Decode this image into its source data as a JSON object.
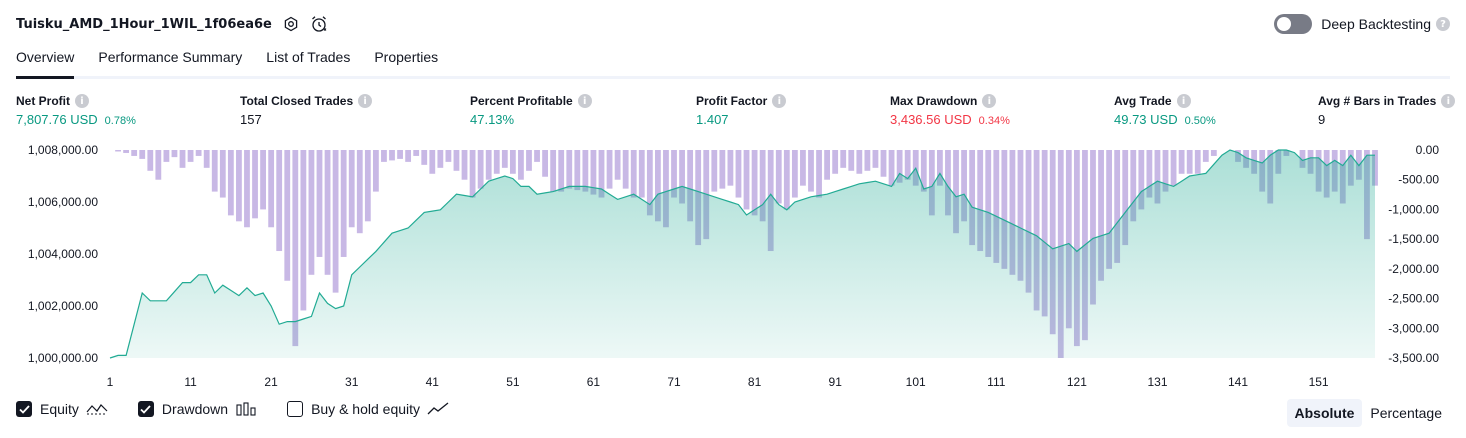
{
  "header": {
    "strategy_name": "Tuisku_AMD_1Hour_1WIL_1f06ea6e",
    "deep_backtesting_label": "Deep Backtesting",
    "deep_backtesting_enabled": false
  },
  "tabs": [
    {
      "label": "Overview",
      "active": true
    },
    {
      "label": "Performance Summary",
      "active": false
    },
    {
      "label": "List of Trades",
      "active": false
    },
    {
      "label": "Properties",
      "active": false
    }
  ],
  "metrics": {
    "net_profit": {
      "label": "Net Profit",
      "value": "7,807.76 USD",
      "pct": "0.78%"
    },
    "total_closed_trades": {
      "label": "Total Closed Trades",
      "value": "157"
    },
    "percent_profitable": {
      "label": "Percent Profitable",
      "value": "47.13%"
    },
    "profit_factor": {
      "label": "Profit Factor",
      "value": "1.407"
    },
    "max_drawdown": {
      "label": "Max Drawdown",
      "value": "3,436.56 USD",
      "pct": "0.34%"
    },
    "avg_trade": {
      "label": "Avg Trade",
      "value": "49.73 USD",
      "pct": "0.50%"
    },
    "avg_bars": {
      "label": "Avg # Bars in Trades",
      "value": "9"
    }
  },
  "colors": {
    "positive": "#089981",
    "negative": "#f23645",
    "equity_line": "#22ab94",
    "drawdown_bar": "#b39ddb"
  },
  "legend": {
    "equity_label": "Equity",
    "drawdown_label": "Drawdown",
    "buy_hold_label": "Buy & hold equity",
    "equity_checked": true,
    "drawdown_checked": true,
    "buy_hold_checked": false
  },
  "modes": [
    {
      "label": "Absolute",
      "active": true
    },
    {
      "label": "Percentage",
      "active": false
    }
  ],
  "chart_data": {
    "type": "area",
    "left_ticks": [
      "1,008,000.00",
      "1,006,000.00",
      "1,004,000.00",
      "1,002,000.00",
      "1,000,000.00"
    ],
    "left_tick_values": [
      1008000,
      1006000,
      1004000,
      1002000,
      1000000
    ],
    "right_ticks": [
      "0.00",
      "-500.00",
      "-1,000.00",
      "-1,500.00",
      "-2,000.00",
      "-2,500.00",
      "-3,000.00",
      "-3,500.00"
    ],
    "right_tick_values": [
      0,
      -500,
      -1000,
      -1500,
      -2000,
      -2500,
      -3000,
      -3500
    ],
    "x_ticks": [
      "1",
      "11",
      "21",
      "31",
      "41",
      "51",
      "61",
      "71",
      "81",
      "91",
      "101",
      "111",
      "121",
      "131",
      "141",
      "151"
    ],
    "x_tick_values": [
      1,
      11,
      21,
      31,
      41,
      51,
      61,
      71,
      81,
      91,
      101,
      111,
      121,
      131,
      141,
      151
    ],
    "equity_ylim": [
      1000000,
      1008000
    ],
    "drawdown_ylim": [
      -3500,
      0
    ],
    "xlim": [
      1,
      158
    ],
    "equity_anchors": [
      [
        1,
        1000000
      ],
      [
        2,
        1000100
      ],
      [
        3,
        1000100
      ],
      [
        4,
        1001300
      ],
      [
        5,
        1002500
      ],
      [
        6,
        1002200
      ],
      [
        8,
        1002200
      ],
      [
        10,
        1002900
      ],
      [
        11,
        1002900
      ],
      [
        12,
        1003200
      ],
      [
        13,
        1003200
      ],
      [
        14,
        1002500
      ],
      [
        15,
        1002800
      ],
      [
        16,
        1002600
      ],
      [
        17,
        1002400
      ],
      [
        18,
        1002700
      ],
      [
        19,
        1002400
      ],
      [
        20,
        1002500
      ],
      [
        21,
        1002000
      ],
      [
        22,
        1001300
      ],
      [
        23,
        1001400
      ],
      [
        24,
        1001400
      ],
      [
        25,
        1001500
      ],
      [
        26,
        1001600
      ],
      [
        27,
        1002500
      ],
      [
        28,
        1002100
      ],
      [
        29,
        1001900
      ],
      [
        30,
        1002000
      ],
      [
        31,
        1003200
      ],
      [
        34,
        1004100
      ],
      [
        36,
        1004800
      ],
      [
        38,
        1005000
      ],
      [
        40,
        1005600
      ],
      [
        42,
        1005700
      ],
      [
        44,
        1006300
      ],
      [
        46,
        1006200
      ],
      [
        48,
        1006800
      ],
      [
        50,
        1007000
      ],
      [
        51,
        1006900
      ],
      [
        52,
        1006600
      ],
      [
        53,
        1006600
      ],
      [
        54,
        1006300
      ],
      [
        56,
        1006400
      ],
      [
        58,
        1006600
      ],
      [
        60,
        1006600
      ],
      [
        62,
        1006500
      ],
      [
        64,
        1006100
      ],
      [
        65,
        1006200
      ],
      [
        66,
        1006300
      ],
      [
        67,
        1006100
      ],
      [
        68,
        1005900
      ],
      [
        69,
        1006300
      ],
      [
        70,
        1006400
      ],
      [
        72,
        1006600
      ],
      [
        74,
        1006400
      ],
      [
        76,
        1006200
      ],
      [
        78,
        1006000
      ],
      [
        79,
        1005900
      ],
      [
        80,
        1005500
      ],
      [
        81,
        1005700
      ],
      [
        82,
        1005900
      ],
      [
        83,
        1006300
      ],
      [
        84,
        1005900
      ],
      [
        85,
        1005700
      ],
      [
        86,
        1006000
      ],
      [
        88,
        1006200
      ],
      [
        90,
        1006300
      ],
      [
        92,
        1006500
      ],
      [
        94,
        1006700
      ],
      [
        96,
        1006800
      ],
      [
        98,
        1006600
      ],
      [
        99,
        1007100
      ],
      [
        100,
        1006900
      ],
      [
        101,
        1007300
      ],
      [
        102,
        1006500
      ],
      [
        103,
        1006600
      ],
      [
        104,
        1007100
      ],
      [
        105,
        1006600
      ],
      [
        106,
        1006200
      ],
      [
        107,
        1006300
      ],
      [
        108,
        1005800
      ],
      [
        110,
        1005600
      ],
      [
        112,
        1005300
      ],
      [
        114,
        1005000
      ],
      [
        116,
        1004700
      ],
      [
        118,
        1004200
      ],
      [
        120,
        1004400
      ],
      [
        121,
        1004100
      ],
      [
        123,
        1004600
      ],
      [
        125,
        1004800
      ],
      [
        127,
        1005600
      ],
      [
        129,
        1006400
      ],
      [
        131,
        1006800
      ],
      [
        133,
        1006600
      ],
      [
        135,
        1007000
      ],
      [
        137,
        1007100
      ],
      [
        139,
        1007800
      ],
      [
        140,
        1008000
      ],
      [
        141,
        1007900
      ],
      [
        142,
        1007700
      ],
      [
        143,
        1007600
      ],
      [
        144,
        1007500
      ],
      [
        145,
        1007800
      ],
      [
        146,
        1008000
      ],
      [
        147,
        1008000
      ],
      [
        148,
        1007900
      ],
      [
        149,
        1007600
      ],
      [
        150,
        1007700
      ],
      [
        151,
        1007700
      ],
      [
        152,
        1007400
      ],
      [
        153,
        1007600
      ],
      [
        154,
        1007400
      ],
      [
        155,
        1007800
      ],
      [
        156,
        1007400
      ],
      [
        157,
        1007800
      ],
      [
        158,
        1007800
      ]
    ],
    "drawdown_anchors": [
      [
        1,
        0
      ],
      [
        3,
        -50
      ],
      [
        5,
        -150
      ],
      [
        6,
        -350
      ],
      [
        7,
        -500
      ],
      [
        8,
        -200
      ],
      [
        9,
        -120
      ],
      [
        10,
        -300
      ],
      [
        11,
        -200
      ],
      [
        12,
        -100
      ],
      [
        13,
        -300
      ],
      [
        14,
        -700
      ],
      [
        15,
        -800
      ],
      [
        16,
        -1100
      ],
      [
        17,
        -1200
      ],
      [
        18,
        -1300
      ],
      [
        19,
        -1150
      ],
      [
        20,
        -1000
      ],
      [
        21,
        -1300
      ],
      [
        22,
        -1700
      ],
      [
        23,
        -2200
      ],
      [
        24,
        -3300
      ],
      [
        25,
        -2700
      ],
      [
        26,
        -2100
      ],
      [
        27,
        -1800
      ],
      [
        28,
        -2100
      ],
      [
        29,
        -2400
      ],
      [
        30,
        -1800
      ],
      [
        31,
        -1300
      ],
      [
        32,
        -1400
      ],
      [
        33,
        -1200
      ],
      [
        34,
        -700
      ],
      [
        35,
        -200
      ],
      [
        37,
        -150
      ],
      [
        38,
        -200
      ],
      [
        39,
        -100
      ],
      [
        41,
        -400
      ],
      [
        42,
        -300
      ],
      [
        43,
        -200
      ],
      [
        45,
        -500
      ],
      [
        46,
        -800
      ],
      [
        48,
        -500
      ],
      [
        50,
        -300
      ],
      [
        52,
        -500
      ],
      [
        54,
        -200
      ],
      [
        56,
        -700
      ],
      [
        57,
        -700
      ],
      [
        58,
        -650
      ],
      [
        60,
        -700
      ],
      [
        62,
        -800
      ],
      [
        64,
        -500
      ],
      [
        66,
        -800
      ],
      [
        67,
        -800
      ],
      [
        68,
        -1100
      ],
      [
        69,
        -1200
      ],
      [
        70,
        -1300
      ],
      [
        71,
        -800
      ],
      [
        72,
        -900
      ],
      [
        73,
        -1200
      ],
      [
        74,
        -1600
      ],
      [
        75,
        -1500
      ],
      [
        76,
        -700
      ],
      [
        78,
        -600
      ],
      [
        80,
        -1000
      ],
      [
        82,
        -1200
      ],
      [
        83,
        -1700
      ],
      [
        84,
        -900
      ],
      [
        85,
        -1000
      ],
      [
        87,
        -600
      ],
      [
        89,
        -800
      ],
      [
        90,
        -500
      ],
      [
        92,
        -300
      ],
      [
        94,
        -400
      ],
      [
        96,
        -300
      ],
      [
        98,
        -600
      ],
      [
        100,
        -500
      ],
      [
        102,
        -700
      ],
      [
        103,
        -1100
      ],
      [
        104,
        -600
      ],
      [
        105,
        -1100
      ],
      [
        106,
        -1400
      ],
      [
        107,
        -1200
      ],
      [
        108,
        -1600
      ],
      [
        109,
        -1700
      ],
      [
        110,
        -1800
      ],
      [
        111,
        -1900
      ],
      [
        112,
        -2000
      ],
      [
        113,
        -2100
      ],
      [
        114,
        -2200
      ],
      [
        115,
        -2400
      ],
      [
        116,
        -2700
      ],
      [
        117,
        -2800
      ],
      [
        118,
        -3100
      ],
      [
        119,
        -3500
      ],
      [
        120,
        -3000
      ],
      [
        121,
        -3300
      ],
      [
        122,
        -3200
      ],
      [
        123,
        -2600
      ],
      [
        124,
        -2200
      ],
      [
        125,
        -2000
      ],
      [
        126,
        -1900
      ],
      [
        127,
        -1600
      ],
      [
        128,
        -1200
      ],
      [
        129,
        -1000
      ],
      [
        130,
        -800
      ],
      [
        131,
        -900
      ],
      [
        132,
        -700
      ],
      [
        133,
        -600
      ],
      [
        134,
        -400
      ],
      [
        135,
        -400
      ],
      [
        136,
        -400
      ],
      [
        137,
        -200
      ],
      [
        138,
        -100
      ],
      [
        139,
        0
      ],
      [
        140,
        0
      ],
      [
        141,
        -200
      ],
      [
        142,
        -300
      ],
      [
        143,
        -400
      ],
      [
        144,
        -700
      ],
      [
        145,
        -900
      ],
      [
        146,
        -400
      ],
      [
        147,
        -100
      ],
      [
        148,
        0
      ],
      [
        149,
        -300
      ],
      [
        150,
        -400
      ],
      [
        151,
        -700
      ],
      [
        152,
        -800
      ],
      [
        153,
        -700
      ],
      [
        154,
        -900
      ],
      [
        155,
        -600
      ],
      [
        156,
        -500
      ],
      [
        157,
        -1500
      ],
      [
        158,
        -600
      ]
    ]
  }
}
